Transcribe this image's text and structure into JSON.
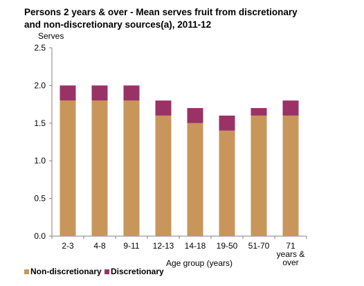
{
  "chart_data": {
    "type": "bar",
    "stacked": true,
    "title_lines": [
      "Persons 2 years  & over - Mean serves fruit  from discretionary",
      "and non-discretionary  sources(a),  2011-12"
    ],
    "ylabel": "Serves",
    "xlabel": "Age group (years)",
    "ylim": [
      0,
      2.5
    ],
    "yticks": [
      "0.0",
      "0.5",
      "1.0",
      "1.5",
      "2.0",
      "2.5"
    ],
    "ytick_values": [
      0,
      0.5,
      1.0,
      1.5,
      2.0,
      2.5
    ],
    "categories": [
      "2-3",
      "4-8",
      "9-11",
      "12-13",
      "14-18",
      "19-50",
      "51-70",
      "71 years & over"
    ],
    "category_label_lines": [
      [
        "2-3"
      ],
      [
        "4-8"
      ],
      [
        "9-11"
      ],
      [
        "12-13"
      ],
      [
        "14-18"
      ],
      [
        "19-50"
      ],
      [
        "51-70"
      ],
      [
        "71",
        "years &",
        "over"
      ]
    ],
    "series": [
      {
        "name": "Non-discretionary",
        "color": "#c8965a",
        "values": [
          1.8,
          1.8,
          1.8,
          1.6,
          1.5,
          1.4,
          1.6,
          1.6
        ]
      },
      {
        "name": "Discretionary",
        "color": "#993366",
        "values": [
          0.2,
          0.2,
          0.2,
          0.2,
          0.2,
          0.2,
          0.1,
          0.2
        ]
      }
    ],
    "legend_position": "bottom-left",
    "grid": false
  }
}
